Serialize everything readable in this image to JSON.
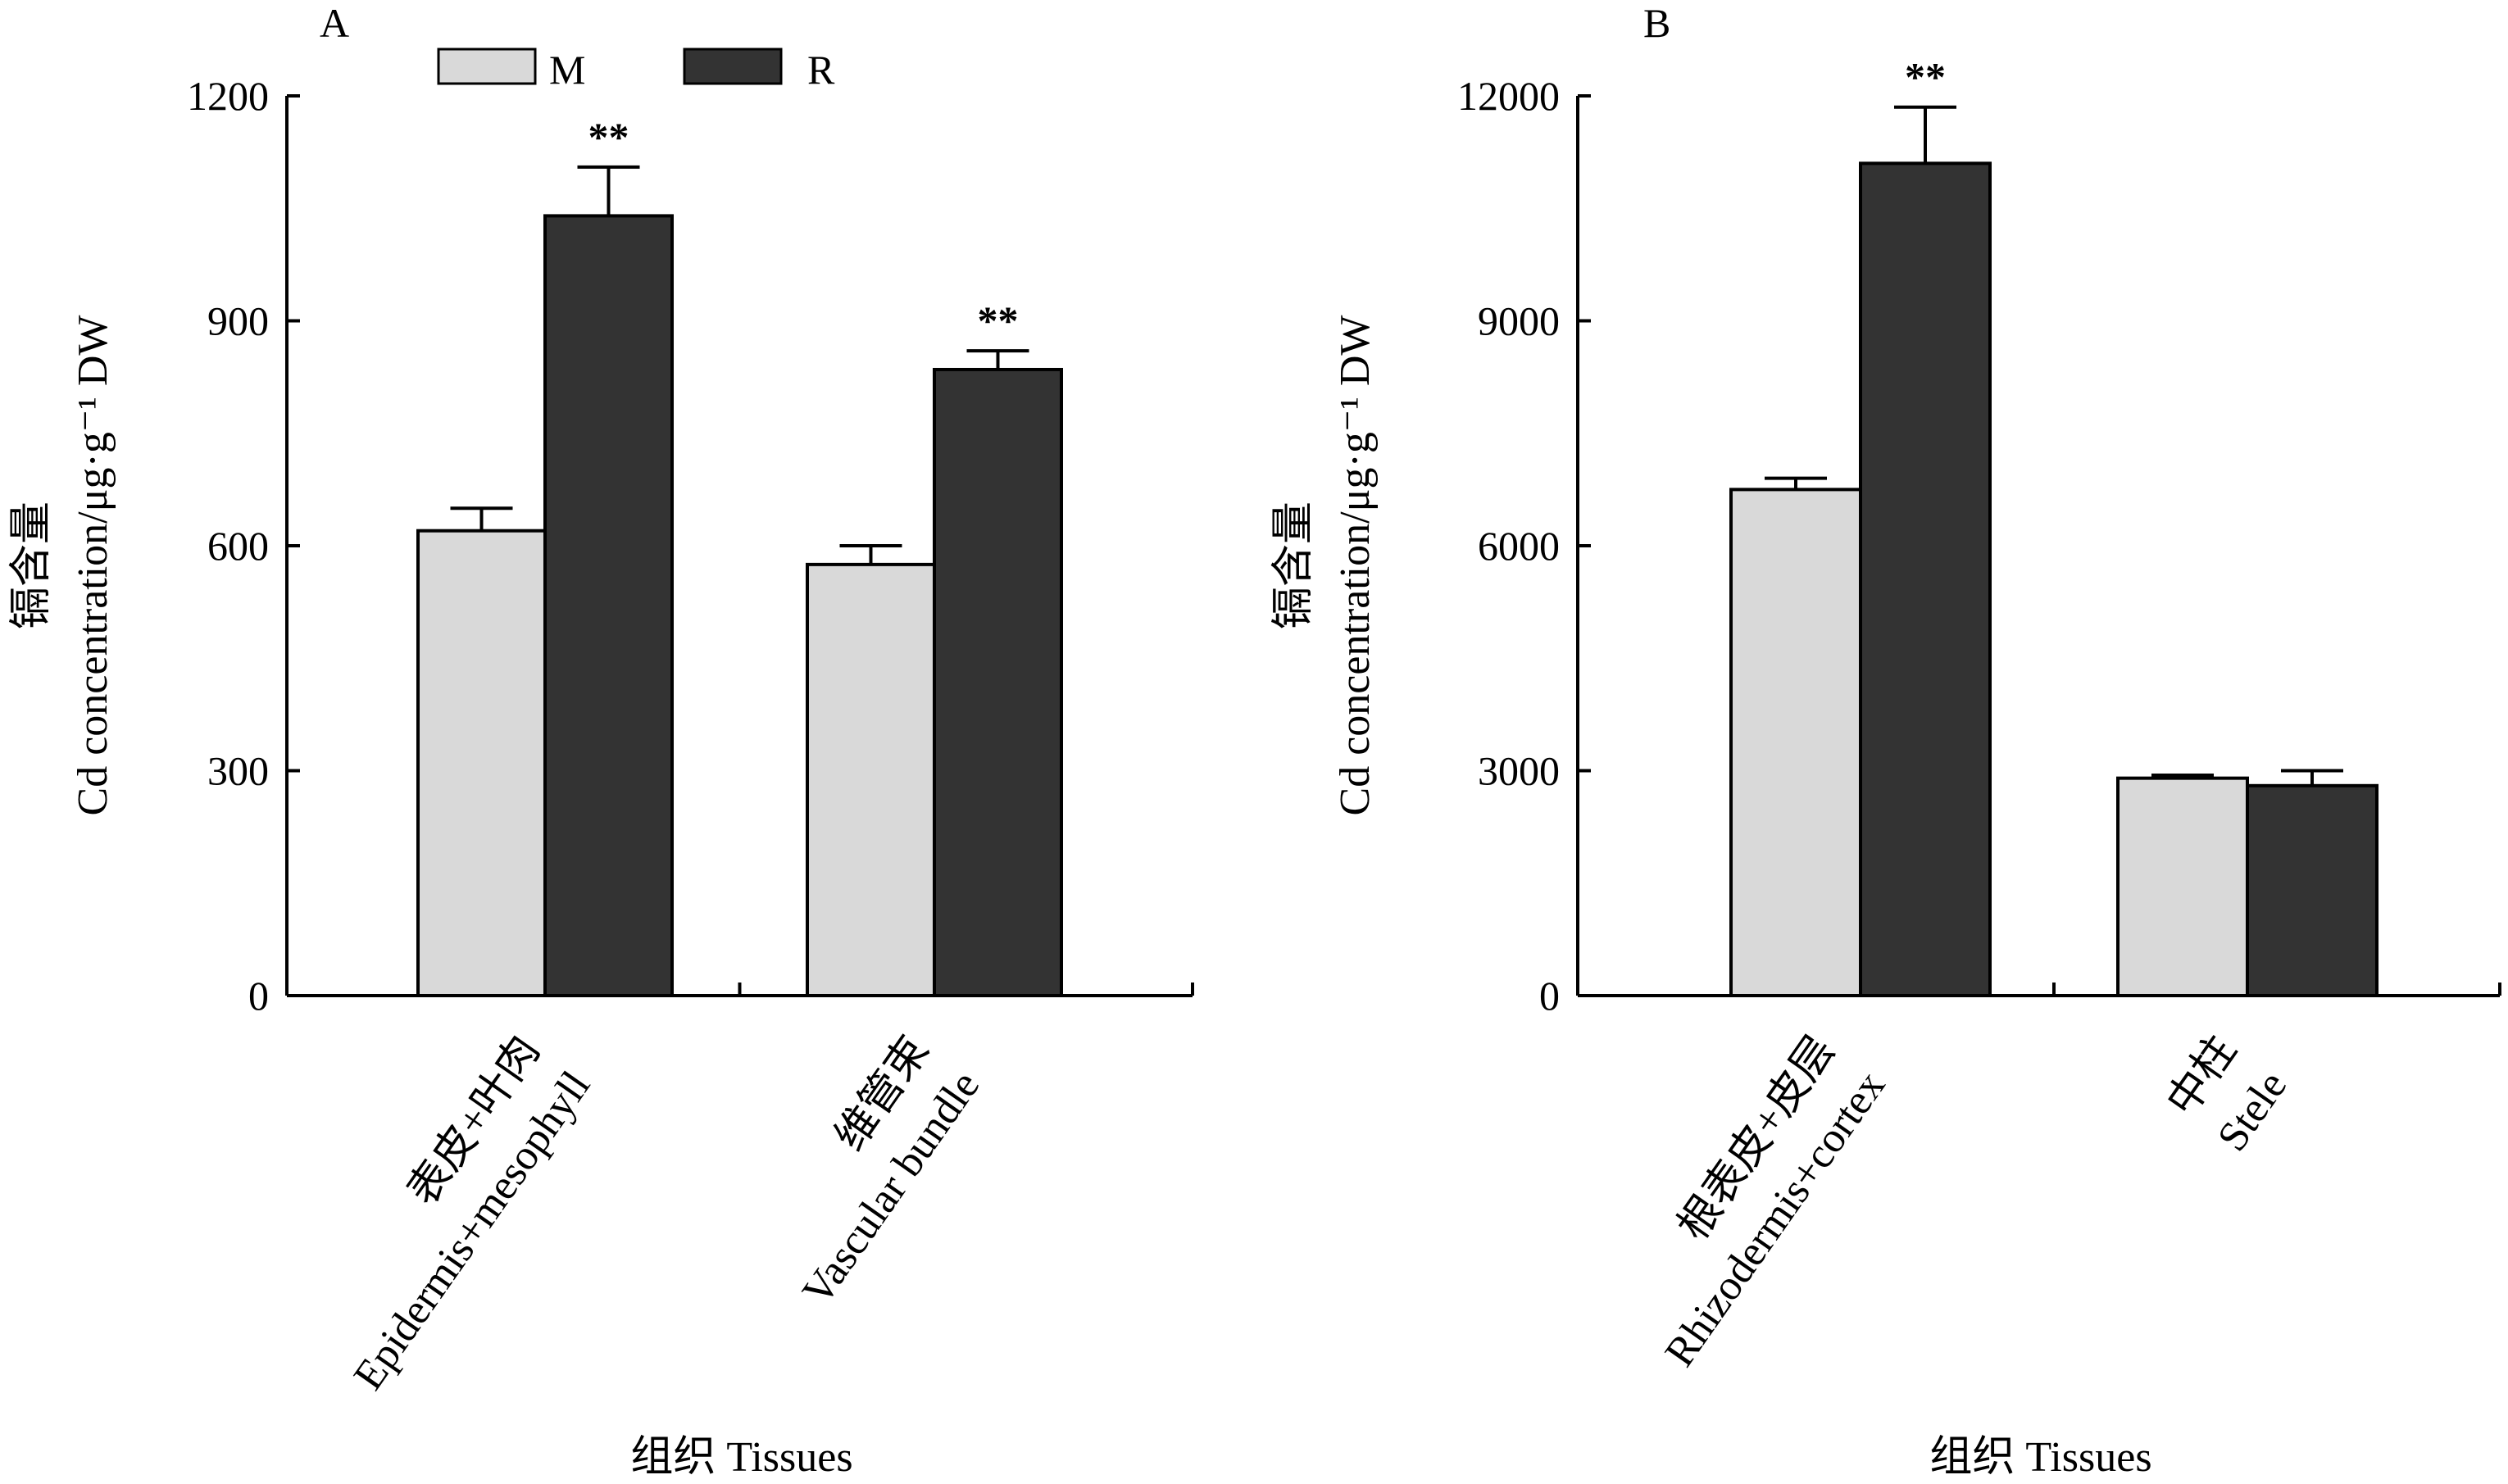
{
  "legend": {
    "items": [
      {
        "label": "M",
        "color": "#d9d9d9"
      },
      {
        "label": "R",
        "color": "#333333"
      }
    ]
  },
  "chart_data": [
    {
      "type": "bar",
      "panel": "A",
      "ylabel_line1": "镉含量",
      "ylabel_line2": "Cd concentration/μg·g⁻¹ DW",
      "xlabel": "组织 Tissues",
      "ylim": [
        0,
        1200
      ],
      "yticks": [
        "0",
        "300",
        "600",
        "900",
        "1200"
      ],
      "categories": [
        {
          "cn": "表皮+叶肉",
          "en": "Epidermis+mesophyll"
        },
        {
          "cn": "维管束",
          "en": "Vascular bundle"
        }
      ],
      "series": [
        {
          "name": "M",
          "values": [
            620,
            575
          ],
          "errors": [
            30,
            25
          ]
        },
        {
          "name": "R",
          "values": [
            1040,
            835
          ],
          "errors": [
            65,
            25
          ]
        }
      ],
      "annotations": [
        {
          "category": 0,
          "series": "R",
          "text": "**"
        },
        {
          "category": 1,
          "series": "R",
          "text": "**"
        }
      ]
    },
    {
      "type": "bar",
      "panel": "B",
      "ylabel_line1": "镉含量",
      "ylabel_line2": "Cd concentration/μg·g⁻¹ DW",
      "xlabel": "组织 Tissues",
      "ylim": [
        0,
        12000
      ],
      "yticks": [
        "0",
        "3000",
        "6000",
        "9000",
        "12000"
      ],
      "categories": [
        {
          "cn": "根表皮+皮层",
          "en": "Rhizodermis+cortex"
        },
        {
          "cn": "中柱",
          "en": "Stele"
        }
      ],
      "series": [
        {
          "name": "M",
          "values": [
            6750,
            2900
          ],
          "errors": [
            150,
            40
          ]
        },
        {
          "name": "R",
          "values": [
            11100,
            2800
          ],
          "errors": [
            750,
            200
          ]
        }
      ],
      "annotations": [
        {
          "category": 0,
          "series": "R",
          "text": "**"
        }
      ]
    }
  ]
}
